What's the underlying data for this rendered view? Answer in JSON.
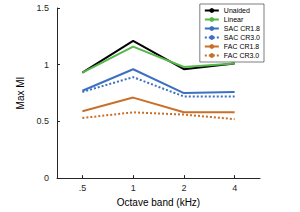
{
  "chart_data": {
    "type": "line",
    "x_label": "Octave band (kHz)",
    "y_label": "Max MI",
    "categories": [
      ".5",
      "1",
      "2",
      "4"
    ],
    "series": [
      {
        "name": "Unaided",
        "color": "#000000",
        "line_style": "solid",
        "values": [
          0.93,
          1.21,
          0.96,
          1.01
        ]
      },
      {
        "name": "Linear",
        "color": "#55b84a",
        "line_style": "solid",
        "values": [
          0.93,
          1.16,
          0.98,
          1.01
        ]
      },
      {
        "name": "SAC CR1.8",
        "color": "#3d6fc2",
        "line_style": "solid",
        "values": [
          0.77,
          0.96,
          0.75,
          0.76
        ]
      },
      {
        "name": "SAC CR3.0",
        "color": "#3d6fc2",
        "line_style": "dotted",
        "values": [
          0.76,
          0.89,
          0.72,
          0.72
        ]
      },
      {
        "name": "FAC CR1.8",
        "color": "#c8702b",
        "line_style": "solid",
        "values": [
          0.59,
          0.71,
          0.58,
          0.58
        ]
      },
      {
        "name": "FAC CR3.0",
        "color": "#c8702b",
        "line_style": "dotted",
        "values": [
          0.53,
          0.58,
          0.56,
          0.52
        ]
      }
    ],
    "ylim": [
      0,
      1.5
    ],
    "yticks": [
      0,
      0.5,
      1,
      1.5
    ],
    "grid": false,
    "legend": "upper right"
  }
}
